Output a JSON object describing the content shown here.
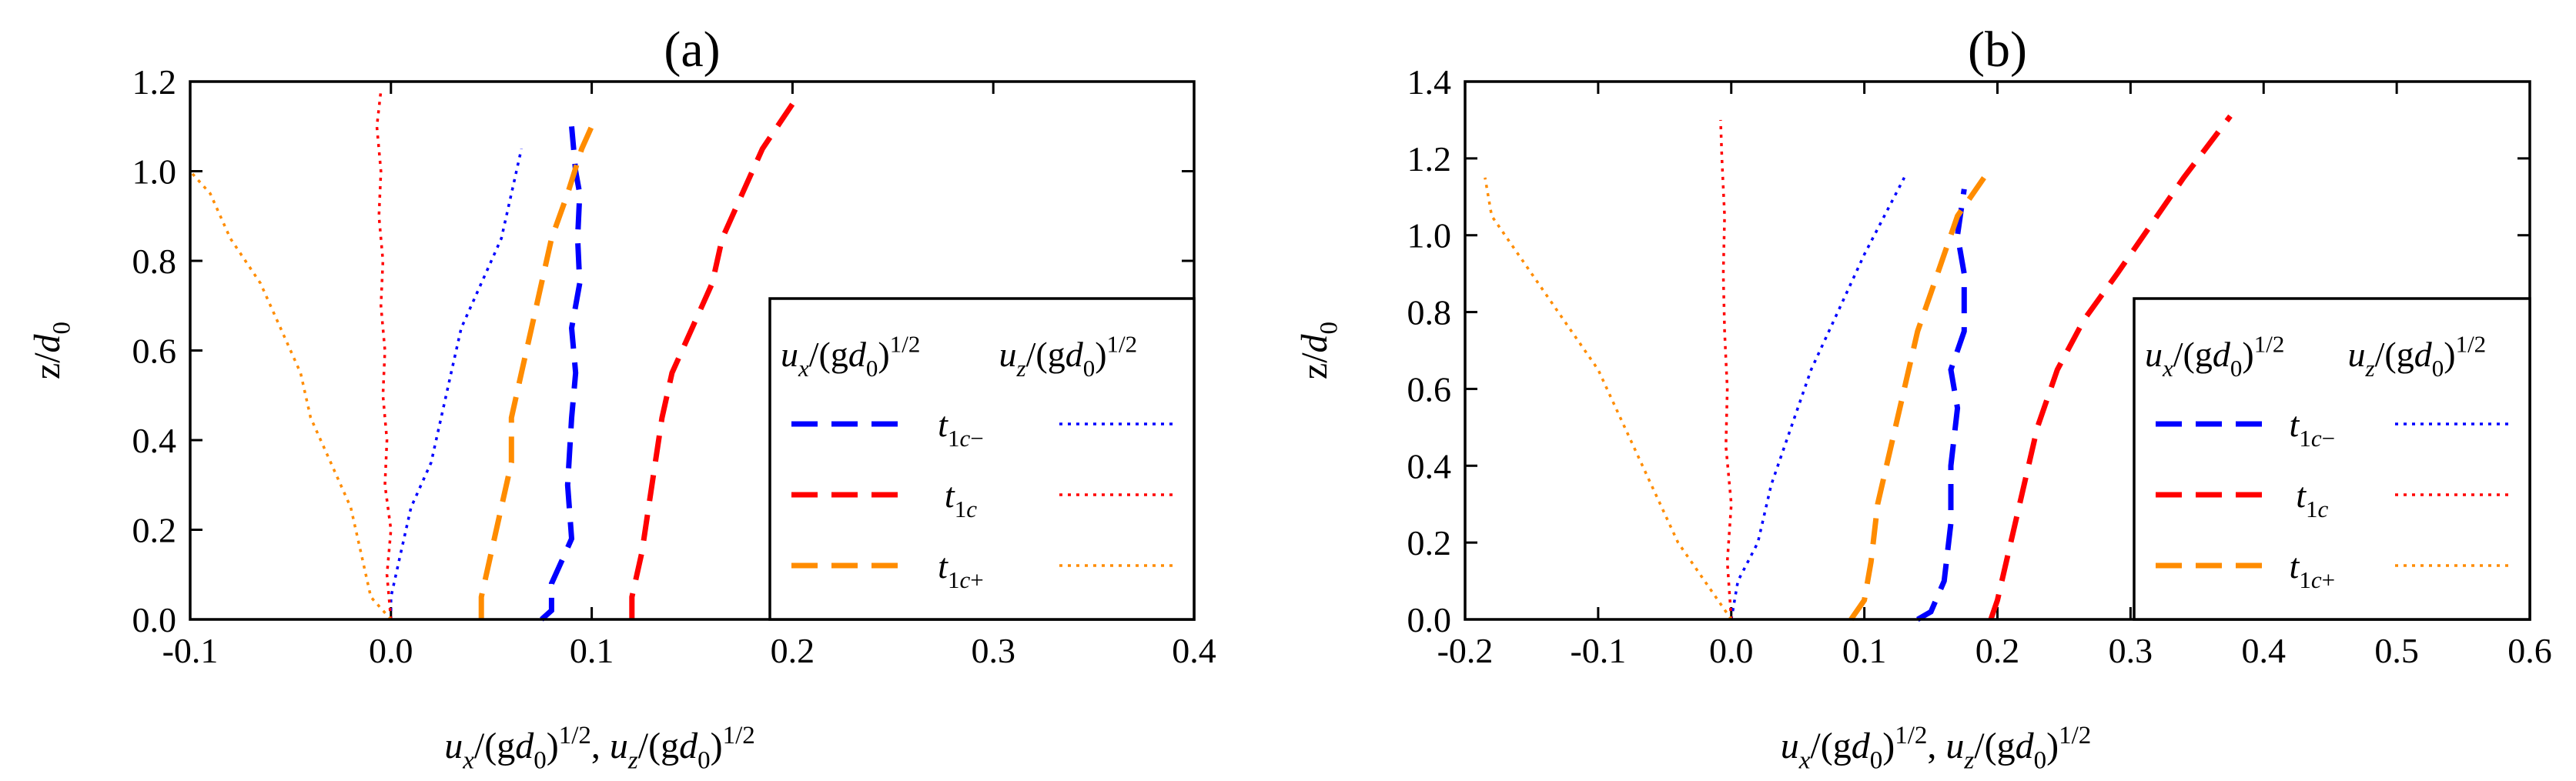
{
  "chart_data": [
    {
      "type": "line",
      "title": "(a)",
      "xlabel": "u_x/(gd_0)^1/2, u_z/(gd_0)^1/2",
      "ylabel": "z/d_0",
      "xlim": [
        -0.1,
        0.4
      ],
      "ylim": [
        0,
        1.2
      ],
      "xticks": [
        "-0.1",
        "0.0",
        "0.1",
        "0.2",
        "0.3",
        "0.4"
      ],
      "yticks": [
        "0.0",
        "0.2",
        "0.4",
        "0.6",
        "0.8",
        "1.0",
        "1.2"
      ],
      "legend": {
        "position": "bottom-right",
        "header_ux": "u_x/(gd_0)^1/2",
        "header_uz": "u_z/(gd_0)^1/2",
        "entries": [
          "t_1c−",
          "t_1c",
          "t_1c+"
        ]
      },
      "series": [
        {
          "name": "u_x t_1c−",
          "color": "#0000ff",
          "style": "dashed",
          "points": [
            [
              0.075,
              0.0
            ],
            [
              0.08,
              0.02
            ],
            [
              0.08,
              0.08
            ],
            [
              0.085,
              0.13
            ],
            [
              0.09,
              0.18
            ],
            [
              0.088,
              0.3
            ],
            [
              0.09,
              0.45
            ],
            [
              0.092,
              0.55
            ],
            [
              0.09,
              0.65
            ],
            [
              0.094,
              0.75
            ],
            [
              0.093,
              0.85
            ],
            [
              0.094,
              0.95
            ],
            [
              0.092,
              1.0
            ],
            [
              0.09,
              1.1
            ]
          ]
        },
        {
          "name": "u_z t_1c−",
          "color": "#0000ff",
          "style": "dotted",
          "points": [
            [
              0.0,
              0.0
            ],
            [
              0.0,
              0.05
            ],
            [
              0.005,
              0.15
            ],
            [
              0.01,
              0.25
            ],
            [
              0.02,
              0.35
            ],
            [
              0.025,
              0.45
            ],
            [
              0.03,
              0.55
            ],
            [
              0.035,
              0.65
            ],
            [
              0.045,
              0.75
            ],
            [
              0.055,
              0.85
            ],
            [
              0.06,
              0.95
            ],
            [
              0.065,
              1.05
            ]
          ]
        },
        {
          "name": "u_x t_1c",
          "color": "#ff0000",
          "style": "dashed",
          "points": [
            [
              0.12,
              0.0
            ],
            [
              0.12,
              0.05
            ],
            [
              0.125,
              0.15
            ],
            [
              0.13,
              0.3
            ],
            [
              0.135,
              0.45
            ],
            [
              0.14,
              0.55
            ],
            [
              0.15,
              0.65
            ],
            [
              0.16,
              0.75
            ],
            [
              0.165,
              0.85
            ],
            [
              0.175,
              0.95
            ],
            [
              0.185,
              1.05
            ],
            [
              0.2,
              1.15
            ]
          ]
        },
        {
          "name": "u_z t_1c",
          "color": "#ff0000",
          "style": "dotted",
          "points": [
            [
              0.0,
              0.0
            ],
            [
              -0.002,
              0.1
            ],
            [
              0.0,
              0.2
            ],
            [
              -0.003,
              0.3
            ],
            [
              -0.002,
              0.4
            ],
            [
              -0.004,
              0.5
            ],
            [
              -0.003,
              0.6
            ],
            [
              -0.005,
              0.7
            ],
            [
              -0.004,
              0.8
            ],
            [
              -0.006,
              0.9
            ],
            [
              -0.005,
              1.0
            ],
            [
              -0.007,
              1.1
            ],
            [
              -0.005,
              1.18
            ]
          ]
        },
        {
          "name": "u_x t_1c+",
          "color": "#ff8c00",
          "style": "dashed",
          "points": [
            [
              0.045,
              0.0
            ],
            [
              0.045,
              0.05
            ],
            [
              0.05,
              0.15
            ],
            [
              0.055,
              0.25
            ],
            [
              0.06,
              0.35
            ],
            [
              0.06,
              0.45
            ],
            [
              0.065,
              0.55
            ],
            [
              0.07,
              0.65
            ],
            [
              0.075,
              0.75
            ],
            [
              0.08,
              0.85
            ],
            [
              0.088,
              0.95
            ],
            [
              0.095,
              1.05
            ],
            [
              0.1,
              1.1
            ]
          ]
        },
        {
          "name": "u_z t_1c+",
          "color": "#ff8c00",
          "style": "dotted",
          "points": [
            [
              0.0,
              0.0
            ],
            [
              -0.01,
              0.05
            ],
            [
              -0.015,
              0.15
            ],
            [
              -0.02,
              0.25
            ],
            [
              -0.03,
              0.35
            ],
            [
              -0.04,
              0.45
            ],
            [
              -0.045,
              0.55
            ],
            [
              -0.055,
              0.65
            ],
            [
              -0.065,
              0.75
            ],
            [
              -0.08,
              0.85
            ],
            [
              -0.09,
              0.95
            ],
            [
              -0.1,
              1.0
            ]
          ]
        }
      ]
    },
    {
      "type": "line",
      "title": "(b)",
      "xlabel": "u_x/(gd_0)^1/2, u_z/(gd_0)^1/2",
      "ylabel": "z/d_0",
      "xlim": [
        -0.2,
        0.6
      ],
      "ylim": [
        0,
        1.4
      ],
      "xticks": [
        "-0.2",
        "-0.1",
        "0.0",
        "0.1",
        "0.2",
        "0.3",
        "0.4",
        "0.5",
        "0.6"
      ],
      "yticks": [
        "0.0",
        "0.2",
        "0.4",
        "0.6",
        "0.8",
        "1.0",
        "1.2",
        "1.4"
      ],
      "legend": {
        "position": "bottom-right",
        "header_ux": "u_x/(gd_0)^1/2",
        "header_uz": "u_z/(gd_0)^1/2",
        "entries": [
          "t_1c−",
          "t_1c",
          "t_1c+"
        ]
      },
      "series": [
        {
          "name": "u_x t_1c−",
          "color": "#0000ff",
          "style": "dashed",
          "points": [
            [
              0.14,
              0.0
            ],
            [
              0.15,
              0.02
            ],
            [
              0.16,
              0.1
            ],
            [
              0.165,
              0.25
            ],
            [
              0.165,
              0.4
            ],
            [
              0.17,
              0.55
            ],
            [
              0.165,
              0.65
            ],
            [
              0.175,
              0.75
            ],
            [
              0.175,
              0.9
            ],
            [
              0.17,
              1.0
            ],
            [
              0.175,
              1.12
            ]
          ]
        },
        {
          "name": "u_z t_1c−",
          "color": "#0000ff",
          "style": "dotted",
          "points": [
            [
              0.0,
              0.0
            ],
            [
              0.005,
              0.1
            ],
            [
              0.02,
              0.2
            ],
            [
              0.03,
              0.35
            ],
            [
              0.045,
              0.5
            ],
            [
              0.06,
              0.65
            ],
            [
              0.08,
              0.8
            ],
            [
              0.1,
              0.95
            ],
            [
              0.115,
              1.05
            ],
            [
              0.13,
              1.15
            ]
          ]
        },
        {
          "name": "u_x t_1c",
          "color": "#ff0000",
          "style": "dashed",
          "points": [
            [
              0.195,
              0.0
            ],
            [
              0.2,
              0.05
            ],
            [
              0.21,
              0.2
            ],
            [
              0.22,
              0.35
            ],
            [
              0.23,
              0.5
            ],
            [
              0.245,
              0.65
            ],
            [
              0.265,
              0.78
            ],
            [
              0.29,
              0.9
            ],
            [
              0.32,
              1.05
            ],
            [
              0.34,
              1.15
            ],
            [
              0.375,
              1.31
            ]
          ]
        },
        {
          "name": "u_z t_1c",
          "color": "#ff0000",
          "style": "dotted",
          "points": [
            [
              0.0,
              0.0
            ],
            [
              -0.003,
              0.15
            ],
            [
              0.0,
              0.3
            ],
            [
              -0.004,
              0.45
            ],
            [
              -0.003,
              0.6
            ],
            [
              -0.005,
              0.75
            ],
            [
              -0.006,
              0.9
            ],
            [
              -0.005,
              1.05
            ],
            [
              -0.007,
              1.2
            ],
            [
              -0.008,
              1.3
            ]
          ]
        },
        {
          "name": "u_x t_1c+",
          "color": "#ff8c00",
          "style": "dashed",
          "points": [
            [
              0.09,
              0.0
            ],
            [
              0.1,
              0.05
            ],
            [
              0.105,
              0.15
            ],
            [
              0.11,
              0.3
            ],
            [
              0.12,
              0.45
            ],
            [
              0.13,
              0.6
            ],
            [
              0.14,
              0.75
            ],
            [
              0.15,
              0.85
            ],
            [
              0.16,
              0.95
            ],
            [
              0.17,
              1.05
            ],
            [
              0.19,
              1.15
            ]
          ]
        },
        {
          "name": "u_z t_1c+",
          "color": "#ff8c00",
          "style": "dotted",
          "points": [
            [
              0.0,
              0.0
            ],
            [
              -0.02,
              0.1
            ],
            [
              -0.04,
              0.2
            ],
            [
              -0.06,
              0.35
            ],
            [
              -0.08,
              0.5
            ],
            [
              -0.1,
              0.65
            ],
            [
              -0.13,
              0.8
            ],
            [
              -0.16,
              0.95
            ],
            [
              -0.18,
              1.05
            ],
            [
              -0.185,
              1.15
            ]
          ]
        }
      ]
    }
  ]
}
